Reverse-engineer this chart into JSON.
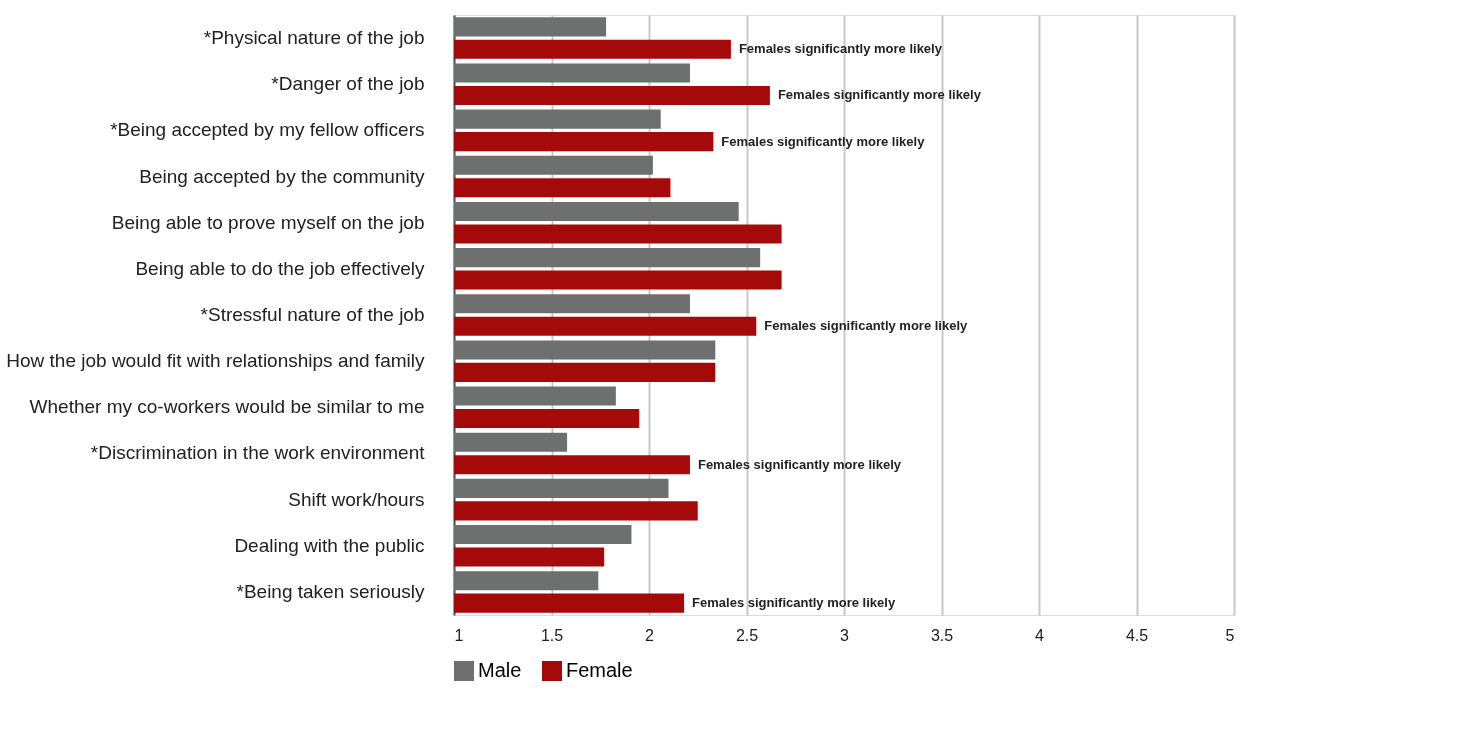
{
  "chart_data": {
    "type": "bar",
    "orientation": "horizontal",
    "categories": [
      "*Physical nature of the job",
      "*Danger of the job",
      "*Being accepted by my fellow officers",
      "Being accepted by the community",
      "Being able to prove myself on the job",
      "Being able to do the job effectively",
      "*Stressful nature of the job",
      "How the job would fit with relationships and family",
      "Whether my co-workers would be similar to me",
      "*Discrimination in the work environment",
      "Shift work/hours",
      "Dealing with the public",
      "*Being taken seriously"
    ],
    "series": [
      {
        "name": "Male",
        "color": "#6d706e",
        "values": [
          1.78,
          2.21,
          2.06,
          2.02,
          2.46,
          2.57,
          2.21,
          2.34,
          1.83,
          1.58,
          2.1,
          1.91,
          1.74
        ]
      },
      {
        "name": "Female",
        "color": "#a50a0a",
        "values": [
          2.42,
          2.62,
          2.33,
          2.11,
          2.68,
          2.68,
          2.55,
          2.34,
          1.95,
          2.21,
          2.25,
          1.77,
          2.18
        ]
      }
    ],
    "xlim": [
      1,
      5
    ],
    "xticks": [
      1,
      1.5,
      2,
      2.5,
      3,
      3.5,
      4,
      4.5,
      5
    ],
    "grid": "x",
    "legend": "bottom",
    "annotations": [
      {
        "text": "Females significantly more likely",
        "x": 2.42,
        "y": "*Physical nature of the job"
      },
      {
        "text": "Females significantly more likely",
        "x": 2.62,
        "y": "*Danger of the job"
      },
      {
        "text": "Females significantly more likely",
        "x": 2.33,
        "y": "*Being accepted by my fellow officers"
      },
      {
        "text": "Females significantly more likely",
        "x": 2.55,
        "y": "*Stressful nature of the job"
      },
      {
        "text": "Females significantly more likely",
        "x": 2.21,
        "y": "*Discrimination in the work environment"
      },
      {
        "text": "Females significantly more likely",
        "x": 2.18,
        "y": "*Being taken seriously"
      }
    ]
  }
}
